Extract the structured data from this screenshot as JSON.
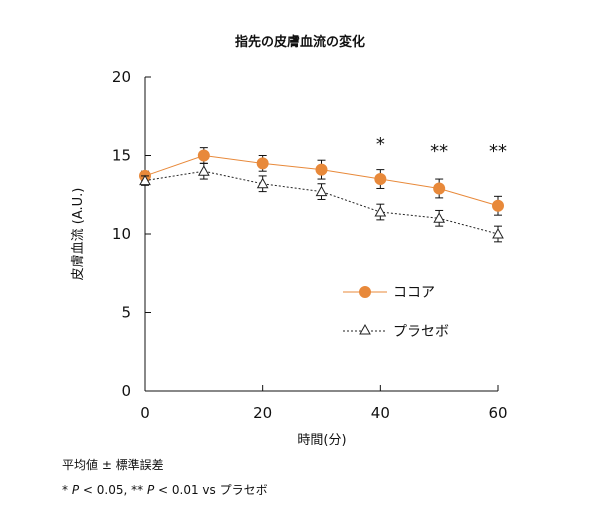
{
  "chart_data": {
    "type": "line",
    "title": "指先の皮膚血流の変化",
    "xlabel": "時間(分)",
    "ylabel": "皮膚血流 (A.U.)",
    "x": [
      0,
      10,
      20,
      30,
      40,
      50,
      60
    ],
    "xlim": [
      0,
      60
    ],
    "ylim": [
      0,
      20
    ],
    "x_ticks": [
      "0",
      "20",
      "40",
      "60"
    ],
    "y_ticks": [
      "0",
      "5",
      "10",
      "15",
      "20"
    ],
    "grid": false,
    "legend_position": "center-right",
    "series": [
      {
        "name": "ココア",
        "marker": "filled-circle",
        "line_style": "solid",
        "color": "#e8893a",
        "values": [
          13.7,
          15.0,
          14.5,
          14.1,
          13.5,
          12.9,
          11.8
        ],
        "errors": [
          0.3,
          0.5,
          0.5,
          0.6,
          0.6,
          0.6,
          0.6
        ]
      },
      {
        "name": "プラセボ",
        "marker": "open-triangle",
        "line_style": "dotted",
        "color": "#222222",
        "values": [
          13.4,
          14.0,
          13.2,
          12.7,
          11.4,
          11.0,
          10.0
        ],
        "errors": [
          0.3,
          0.5,
          0.5,
          0.5,
          0.5,
          0.5,
          0.5
        ]
      }
    ],
    "annotations": [
      {
        "x": 40,
        "text": "*"
      },
      {
        "x": 50,
        "text": "**"
      },
      {
        "x": 60,
        "text": "**"
      }
    ]
  },
  "notes": {
    "line1": "平均値 ± 標準誤差",
    "line2": {
      "sig1_mark": "* ",
      "sig1_p": "P",
      "sig1_rest": " < 0.05,  ** ",
      "sig2_p": "P",
      "sig2_rest": " < 0.01 vs プラセボ"
    }
  }
}
